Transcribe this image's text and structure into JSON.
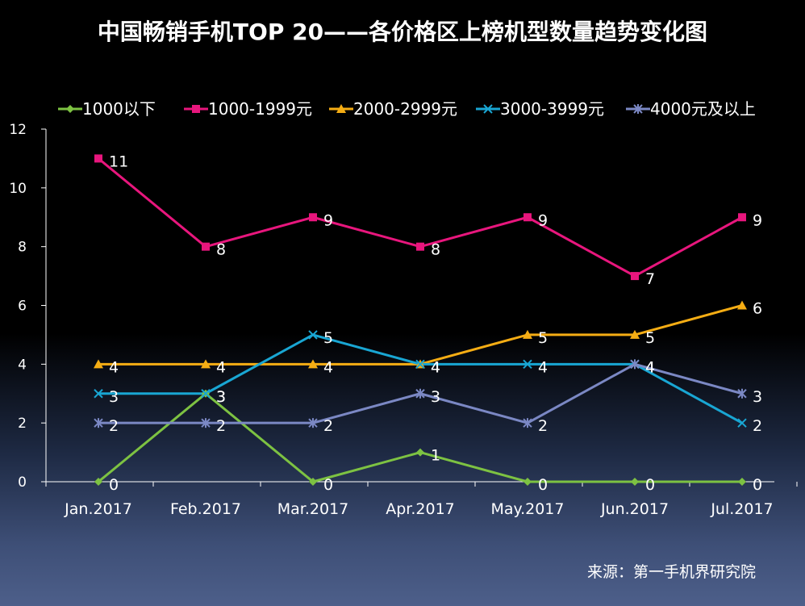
{
  "chart_data": {
    "type": "line",
    "title": "中国畅销手机TOP 20——各价格区上榜机型数量趋势变化图",
    "source": "来源：第一手机界研究院",
    "categories": [
      "Jan.2017",
      "Feb.2017",
      "Mar.2017",
      "Apr.2017",
      "May.2017",
      "Jun.2017",
      "Jul.2017"
    ],
    "ylim": [
      0,
      12
    ],
    "yticks": [
      0,
      2,
      4,
      6,
      8,
      10,
      12
    ],
    "grid": false,
    "legend_position": "top",
    "series": [
      {
        "name": "1000以下",
        "color": "#7dc242",
        "marker": "diamond",
        "values": [
          0,
          3,
          0,
          1,
          0,
          0,
          0
        ]
      },
      {
        "name": "1000-1999元",
        "color": "#e8167d",
        "marker": "square",
        "values": [
          11,
          8,
          9,
          8,
          9,
          7,
          9
        ]
      },
      {
        "name": "2000-2999元",
        "color": "#f5ad14",
        "marker": "triangle",
        "values": [
          4,
          4,
          4,
          4,
          5,
          5,
          6
        ]
      },
      {
        "name": "3000-3999元",
        "color": "#19a6d3",
        "marker": "x",
        "values": [
          3,
          3,
          5,
          4,
          4,
          4,
          2
        ]
      },
      {
        "name": "4000元及以上",
        "color": "#7b88c4",
        "marker": "star",
        "values": [
          2,
          2,
          2,
          3,
          2,
          4,
          3
        ]
      }
    ]
  }
}
